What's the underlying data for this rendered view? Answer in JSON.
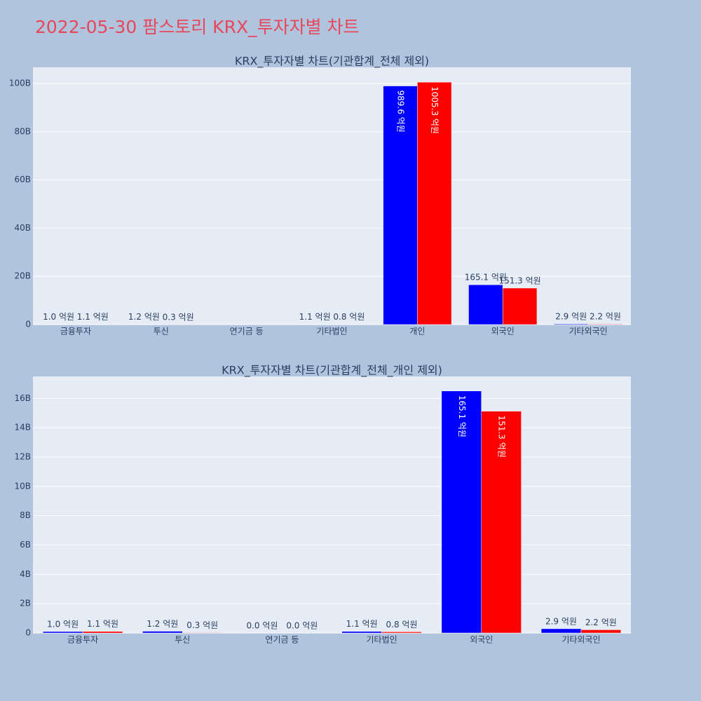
{
  "title": "2022-05-30 팜스토리 KRX_투자자별 차트",
  "chart_data": [
    {
      "type": "bar",
      "title": "KRX_투자자별 차트(기관합계_전체 제외)",
      "categories": [
        "금융투자",
        "투신",
        "연기금 등",
        "기타법인",
        "개인",
        "외국인",
        "기타외국인"
      ],
      "series": [
        {
          "color": "#0000ff",
          "values": [
            100000000,
            120000000,
            0,
            110000000,
            98960000000,
            16510000000,
            290000000
          ],
          "value_labels": [
            "1.0 억원",
            "1.2 억원",
            null,
            "1.1 억원",
            "989.6 억원",
            "165.1 억원",
            "2.9 억원"
          ]
        },
        {
          "color": "#ff0000",
          "values": [
            110000000,
            30000000,
            0,
            80000000,
            100530000000,
            15130000000,
            220000000
          ],
          "value_labels": [
            "1.1 억원",
            "0.3 억원",
            null,
            "0.8 억원",
            "1005.3 억원",
            "151.3 억원",
            "2.2 억원"
          ]
        }
      ],
      "ylim": [
        0,
        106700000000
      ],
      "yticks": [
        0,
        {
          "value": 20000000000,
          "label": "20B"
        },
        {
          "value": 40000000000,
          "label": "40B"
        },
        {
          "value": 60000000000,
          "label": "60B"
        },
        {
          "value": 80000000000,
          "label": "80B"
        },
        {
          "value": 100000000000,
          "label": "100B"
        }
      ],
      "grid": true
    },
    {
      "type": "bar",
      "title": "KRX_투자자별 차트(기관합계_전체_개인 제외)",
      "categories": [
        "금융투자",
        "투신",
        "연기금 등",
        "기타법인",
        "외국인",
        "기타외국인"
      ],
      "series": [
        {
          "color": "#0000ff",
          "values": [
            100000000,
            120000000,
            0,
            110000000,
            16510000000,
            290000000
          ],
          "value_labels": [
            "1.0 억원",
            "1.2 억원",
            "0.0 억원",
            "1.1 억원",
            "165.1 억원",
            "2.9 억원"
          ]
        },
        {
          "color": "#ff0000",
          "values": [
            110000000,
            30000000,
            0,
            80000000,
            15130000000,
            220000000
          ],
          "value_labels": [
            "1.1 억원",
            "0.3 억원",
            "0.0 억원",
            "0.8 억원",
            "151.3 억원",
            "2.2 억원"
          ]
        }
      ],
      "ylim": [
        0,
        17500000000
      ],
      "yticks": [
        0,
        {
          "value": 2000000000,
          "label": "2B"
        },
        {
          "value": 4000000000,
          "label": "4B"
        },
        {
          "value": 6000000000,
          "label": "6B"
        },
        {
          "value": 8000000000,
          "label": "8B"
        },
        {
          "value": 10000000000,
          "label": "10B"
        },
        {
          "value": 12000000000,
          "label": "12B"
        },
        {
          "value": 14000000000,
          "label": "14B"
        },
        {
          "value": 16000000000,
          "label": "16B"
        }
      ],
      "grid": true
    }
  ]
}
